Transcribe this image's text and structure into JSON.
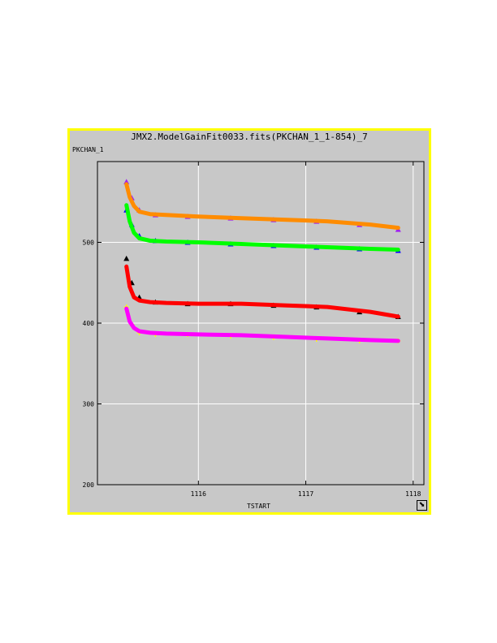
{
  "window": {
    "title": "JMX2.ModelGainFit0033.fits(PKCHAN_1_1-854)_7"
  },
  "chart_data": {
    "type": "scatter",
    "xlabel": "TSTART",
    "ylabel": "PKCHAN_1",
    "xlim": [
      1115.06,
      1118.1
    ],
    "ylim": [
      200,
      600
    ],
    "x_ticks": [
      1116,
      1117,
      1118
    ],
    "y_ticks": [
      200,
      300,
      400,
      500
    ],
    "grid": true,
    "series": [
      {
        "color": "#a020f0",
        "marker": "triangle",
        "x": [
          1115.33,
          1115.38,
          1115.45,
          1115.6,
          1115.9,
          1116.3,
          1116.7,
          1117.1,
          1117.5,
          1117.86
        ],
        "values": [
          575,
          555,
          540,
          534,
          532,
          530,
          528,
          526,
          522,
          516
        ]
      },
      {
        "color": "#0000ff",
        "marker": "triangle",
        "x": [
          1115.33,
          1115.38,
          1115.45,
          1115.6,
          1115.9,
          1116.3,
          1116.7,
          1117.1,
          1117.5,
          1117.86
        ],
        "values": [
          540,
          522,
          508,
          502,
          500,
          498,
          496,
          494,
          492,
          490
        ]
      },
      {
        "color": "#000000",
        "marker": "triangle",
        "x": [
          1115.33,
          1115.38,
          1115.45,
          1115.6,
          1115.9,
          1116.3,
          1116.7,
          1117.1,
          1117.5,
          1117.86
        ],
        "values": [
          480,
          450,
          432,
          426,
          424,
          424,
          422,
          420,
          414,
          408
        ]
      },
      {
        "color": "#ffff00",
        "marker": "plus",
        "x": [
          1115.33,
          1115.38,
          1115.45,
          1115.6,
          1115.9,
          1116.3,
          1116.7,
          1117.1,
          1117.5,
          1117.86
        ],
        "values": [
          420,
          398,
          388,
          386,
          386,
          384,
          382,
          380,
          378,
          378
        ]
      },
      {
        "color": "#ff8c00",
        "marker": "line",
        "x": [
          1115.33,
          1115.36,
          1115.4,
          1115.45,
          1115.55,
          1115.7,
          1116.0,
          1116.4,
          1116.8,
          1117.2,
          1117.6,
          1117.86
        ],
        "values": [
          572,
          556,
          545,
          538,
          535,
          534,
          532,
          530,
          528,
          526,
          522,
          518
        ]
      },
      {
        "color": "#00ff00",
        "marker": "line",
        "x": [
          1115.33,
          1115.36,
          1115.4,
          1115.45,
          1115.55,
          1115.7,
          1116.0,
          1116.4,
          1116.8,
          1117.2,
          1117.6,
          1117.86
        ],
        "values": [
          546,
          526,
          512,
          505,
          502,
          501,
          500,
          498,
          496,
          494,
          492,
          491
        ]
      },
      {
        "color": "#ff0000",
        "marker": "line",
        "x": [
          1115.33,
          1115.36,
          1115.4,
          1115.45,
          1115.55,
          1115.7,
          1116.0,
          1116.4,
          1116.8,
          1117.2,
          1117.6,
          1117.86
        ],
        "values": [
          470,
          445,
          432,
          428,
          426,
          425,
          424,
          424,
          422,
          420,
          414,
          408
        ]
      },
      {
        "color": "#ff00ff",
        "marker": "line",
        "x": [
          1115.33,
          1115.36,
          1115.4,
          1115.45,
          1115.55,
          1115.7,
          1116.0,
          1116.4,
          1116.8,
          1117.2,
          1117.6,
          1117.86
        ],
        "values": [
          418,
          402,
          394,
          390,
          388,
          387,
          386,
          385,
          383,
          381,
          379,
          378
        ]
      }
    ]
  }
}
